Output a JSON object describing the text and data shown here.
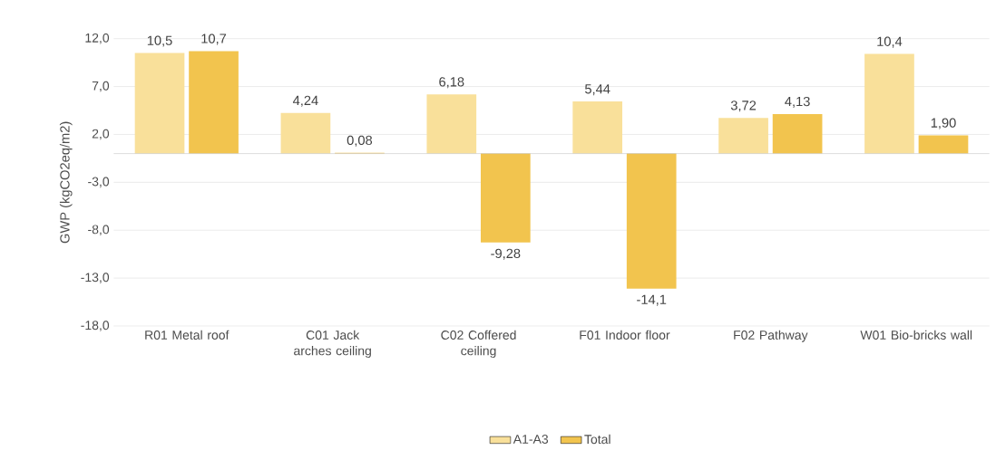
{
  "chart_data": {
    "type": "bar",
    "ylabel": "GWP (kgCO2eq/m2)",
    "categories": [
      "R01 Metal roof",
      "C01 Jack arches ceiling",
      "C02 Coffered ceiling",
      "F01 Indoor floor",
      "F02 Pathway",
      "W01 Bio-bricks wall"
    ],
    "series": [
      {
        "name": "A1-A3",
        "color": "#f9e09a",
        "values": [
          10.5,
          4.24,
          6.18,
          5.44,
          3.72,
          10.4
        ],
        "value_labels": [
          "10,5",
          "4,24",
          "6,18",
          "5,44",
          "3,72",
          "10,4"
        ]
      },
      {
        "name": "Total",
        "color": "#f2c44e",
        "values": [
          10.7,
          0.08,
          -9.28,
          -14.1,
          4.13,
          1.9
        ],
        "value_labels": [
          "10,7",
          "0,08",
          "-9,28",
          "-14,1",
          "4,13",
          "1,90"
        ]
      }
    ],
    "ylim": [
      -18,
      12
    ],
    "yticks": [
      {
        "value": 12,
        "label": "12,0"
      },
      {
        "value": 7,
        "label": "7,0"
      },
      {
        "value": 2,
        "label": "2,0"
      },
      {
        "value": -3,
        "label": "-3,0"
      },
      {
        "value": -8,
        "label": "-8,0"
      },
      {
        "value": -13,
        "label": "-13,0"
      },
      {
        "value": -18,
        "label": "-18,0"
      }
    ],
    "grid": "y",
    "legend": "bottom"
  }
}
